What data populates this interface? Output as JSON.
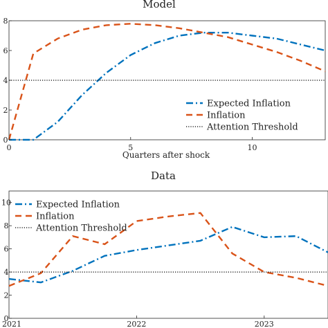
{
  "chart_data": [
    {
      "type": "line",
      "title": "Model",
      "xlabel": "Quarters after shock",
      "ylabel": "",
      "xlim": [
        0,
        13
      ],
      "ylim": [
        0,
        8
      ],
      "xticks": [
        0,
        5,
        10
      ],
      "yticks": [
        0,
        2,
        4,
        6,
        8
      ],
      "grid": false,
      "legend_position": "bottom-right",
      "series": [
        {
          "name": "Expected Inflation",
          "style": "dashdot",
          "color": "#0072BD",
          "x": [
            0,
            1,
            2,
            3,
            4,
            5,
            6,
            7,
            8,
            9,
            10,
            11,
            12,
            13
          ],
          "y": [
            0,
            0,
            1.2,
            3.0,
            4.5,
            5.7,
            6.5,
            7.0,
            7.2,
            7.2,
            7.0,
            6.8,
            6.4,
            6.0
          ]
        },
        {
          "name": "Inflation",
          "style": "dashed",
          "color": "#D95319",
          "x": [
            0,
            1,
            2,
            3,
            4,
            5,
            6,
            7,
            8,
            9,
            10,
            11,
            12,
            13
          ],
          "y": [
            0,
            5.8,
            6.8,
            7.4,
            7.7,
            7.8,
            7.7,
            7.5,
            7.2,
            6.9,
            6.4,
            5.9,
            5.3,
            4.6
          ]
        },
        {
          "name": "Attention Threshold",
          "style": "dotted",
          "color": "#000000",
          "x": [
            0,
            13
          ],
          "y": [
            4,
            4
          ]
        }
      ]
    },
    {
      "type": "line",
      "title": "Data",
      "xlabel": "",
      "ylabel": "",
      "xlim": [
        2021.0,
        2023.5
      ],
      "ylim": [
        0,
        11
      ],
      "xticks": [
        2021,
        2022,
        2023
      ],
      "xticklabels": [
        "2021",
        "2022",
        "2023"
      ],
      "yticks": [
        0,
        2,
        4,
        6,
        8,
        10
      ],
      "grid": false,
      "legend_position": "top-left",
      "series": [
        {
          "name": "Expected Inflation",
          "style": "dashdot",
          "color": "#0072BD",
          "x": [
            2021.0,
            2021.25,
            2021.5,
            2021.75,
            2022.0,
            2022.25,
            2022.5,
            2022.75,
            2023.0,
            2023.25,
            2023.5
          ],
          "y": [
            3.4,
            3.1,
            4.1,
            5.4,
            5.9,
            6.3,
            6.7,
            7.9,
            7.0,
            7.1,
            5.7
          ]
        },
        {
          "name": "Inflation",
          "style": "dashed",
          "color": "#D95319",
          "x": [
            2021.0,
            2021.25,
            2021.5,
            2021.75,
            2022.0,
            2022.25,
            2022.5,
            2022.75,
            2023.0,
            2023.25,
            2023.5
          ],
          "y": [
            2.8,
            3.9,
            7.1,
            6.4,
            8.4,
            8.8,
            9.1,
            5.6,
            4.0,
            3.5,
            2.8
          ]
        },
        {
          "name": "Attention Threshold",
          "style": "dotted",
          "color": "#000000",
          "x": [
            2021.0,
            2023.5
          ],
          "y": [
            4,
            4
          ]
        }
      ]
    }
  ]
}
